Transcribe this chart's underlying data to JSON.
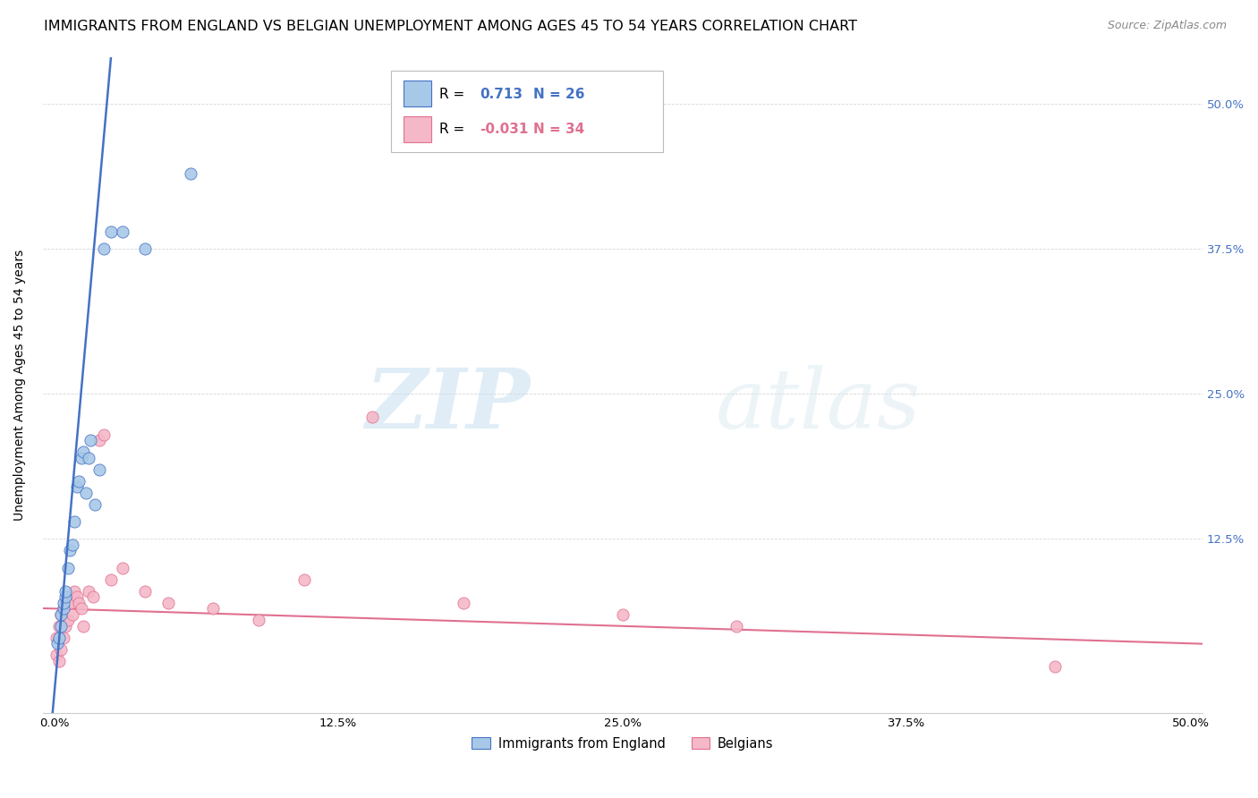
{
  "title": "IMMIGRANTS FROM ENGLAND VS BELGIAN UNEMPLOYMENT AMONG AGES 45 TO 54 YEARS CORRELATION CHART",
  "source": "Source: ZipAtlas.com",
  "ylabel": "Unemployment Among Ages 45 to 54 years",
  "xlim": [
    -0.005,
    0.505
  ],
  "ylim": [
    -0.025,
    0.54
  ],
  "xtick_labels": [
    "0.0%",
    "12.5%",
    "25.0%",
    "37.5%",
    "50.0%"
  ],
  "xtick_values": [
    0.0,
    0.125,
    0.25,
    0.375,
    0.5
  ],
  "ytick_labels": [
    "12.5%",
    "25.0%",
    "37.5%",
    "50.0%"
  ],
  "ytick_values": [
    0.125,
    0.25,
    0.375,
    0.5
  ],
  "legend_r1_prefix": "R = ",
  "legend_r1_val": " 0.713",
  "legend_n1": "N = 26",
  "legend_r2_prefix": "R = ",
  "legend_r2_val": "-0.031",
  "legend_n2": "N = 34",
  "color_england": "#a8c8e8",
  "color_belgians": "#f4b8c8",
  "color_england_line": "#4472c4",
  "color_belgians_line": "#e07090",
  "watermark_zip": "ZIP",
  "watermark_atlas": "atlas",
  "england_x": [
    0.0015,
    0.002,
    0.003,
    0.003,
    0.004,
    0.004,
    0.005,
    0.005,
    0.006,
    0.007,
    0.008,
    0.009,
    0.01,
    0.011,
    0.012,
    0.013,
    0.014,
    0.015,
    0.016,
    0.018,
    0.02,
    0.022,
    0.025,
    0.03,
    0.04,
    0.06
  ],
  "england_y": [
    0.035,
    0.04,
    0.05,
    0.06,
    0.065,
    0.07,
    0.075,
    0.08,
    0.1,
    0.115,
    0.12,
    0.14,
    0.17,
    0.175,
    0.195,
    0.2,
    0.165,
    0.195,
    0.21,
    0.155,
    0.185,
    0.375,
    0.39,
    0.39,
    0.375,
    0.44
  ],
  "belgians_x": [
    0.001,
    0.001,
    0.002,
    0.002,
    0.003,
    0.003,
    0.004,
    0.004,
    0.005,
    0.006,
    0.006,
    0.007,
    0.008,
    0.009,
    0.01,
    0.011,
    0.012,
    0.013,
    0.015,
    0.017,
    0.02,
    0.022,
    0.025,
    0.03,
    0.04,
    0.05,
    0.07,
    0.09,
    0.11,
    0.14,
    0.18,
    0.25,
    0.3,
    0.44
  ],
  "belgians_y": [
    0.025,
    0.04,
    0.02,
    0.05,
    0.03,
    0.06,
    0.04,
    0.065,
    0.05,
    0.055,
    0.07,
    0.07,
    0.06,
    0.08,
    0.075,
    0.07,
    0.065,
    0.05,
    0.08,
    0.075,
    0.21,
    0.215,
    0.09,
    0.1,
    0.08,
    0.07,
    0.065,
    0.055,
    0.09,
    0.23,
    0.07,
    0.06,
    0.05,
    0.015
  ],
  "title_fontsize": 11.5,
  "axis_label_fontsize": 10,
  "tick_fontsize": 9.5,
  "legend_fontsize": 11,
  "source_fontsize": 9
}
